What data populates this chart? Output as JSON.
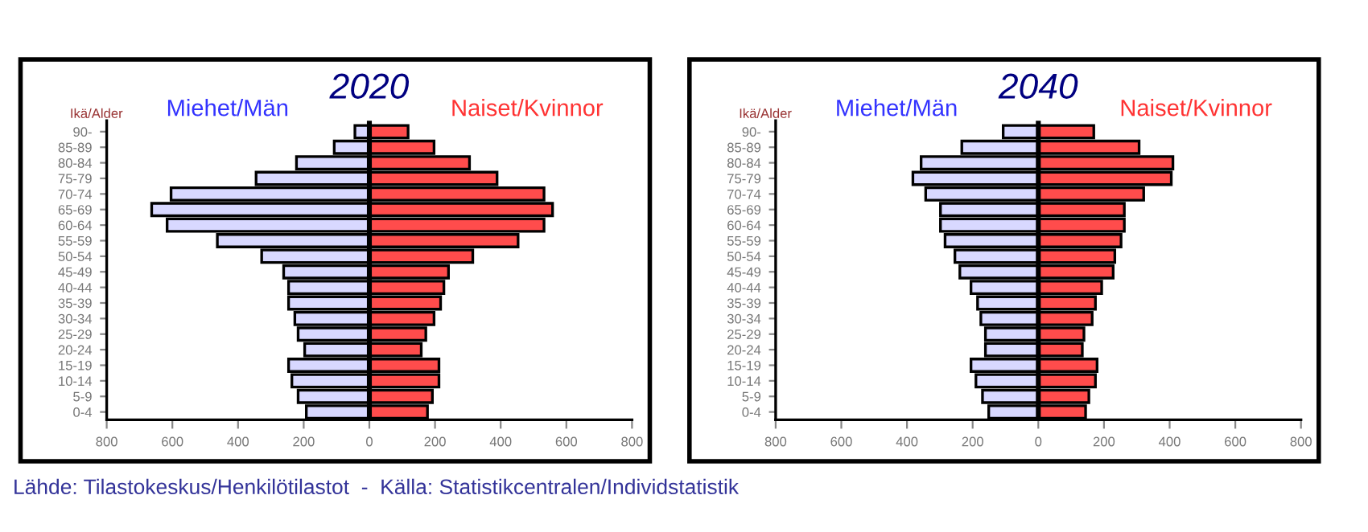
{
  "chart_data": [
    {
      "type": "bar",
      "orientation": "horizontal",
      "stacked": true,
      "title": "2020",
      "ylabel": "Ikä/Alder",
      "categories": [
        "90-",
        "85-89",
        "80-84",
        "75-79",
        "70-74",
        "65-69",
        "60-64",
        "55-59",
        "50-54",
        "45-49",
        "40-44",
        "35-39",
        "30-34",
        "25-29",
        "20-24",
        "15-19",
        "10-14",
        "5-9",
        "0-4"
      ],
      "series": [
        {
          "name": "Miehet/Män",
          "color": "#d8d8ff",
          "values": [
            -44,
            -107,
            -222,
            -345,
            -604,
            -663,
            -616,
            -463,
            -328,
            -261,
            -246,
            -246,
            -227,
            -217,
            -197,
            -246,
            -236,
            -217,
            -192
          ]
        },
        {
          "name": "Naiset/Kvinnor",
          "color": "#ff4c4c",
          "values": [
            118,
            197,
            305,
            389,
            532,
            558,
            532,
            453,
            315,
            241,
            227,
            217,
            197,
            172,
            158,
            212,
            212,
            192,
            177
          ]
        }
      ],
      "xlim": [
        -800,
        800
      ],
      "xticks": [
        {
          "value": -800,
          "label": "800"
        },
        {
          "value": -600,
          "label": "600"
        },
        {
          "value": -400,
          "label": "400"
        },
        {
          "value": -200,
          "label": "200"
        },
        0,
        200,
        400,
        600,
        800
      ],
      "ref_lines": [
        {
          "axis": "x",
          "value": 0,
          "color": "#000000"
        }
      ],
      "legend": "top",
      "grid": false
    },
    {
      "type": "bar",
      "orientation": "horizontal",
      "stacked": true,
      "title": "2040",
      "ylabel": "Ikä/Alder",
      "categories": [
        "90-",
        "85-89",
        "80-84",
        "75-79",
        "70-74",
        "65-69",
        "60-64",
        "55-59",
        "50-54",
        "45-49",
        "40-44",
        "35-39",
        "30-34",
        "25-29",
        "20-24",
        "15-19",
        "10-14",
        "5-9",
        "0-4"
      ],
      "series": [
        {
          "name": "Miehet/Män",
          "color": "#d8d8ff",
          "values": [
            -107,
            -233,
            -357,
            -382,
            -343,
            -298,
            -298,
            -284,
            -254,
            -239,
            -205,
            -185,
            -175,
            -161,
            -161,
            -205,
            -190,
            -170,
            -151
          ]
        },
        {
          "name": "Naiset/Kvinnor",
          "color": "#ff4c4c",
          "values": [
            169,
            307,
            410,
            405,
            321,
            262,
            262,
            252,
            233,
            228,
            193,
            174,
            164,
            139,
            134,
            179,
            174,
            154,
            144
          ]
        }
      ],
      "xlim": [
        -800,
        800
      ],
      "xticks": [
        {
          "value": -800,
          "label": "800"
        },
        {
          "value": -600,
          "label": "600"
        },
        {
          "value": -400,
          "label": "400"
        },
        {
          "value": -200,
          "label": "200"
        },
        0,
        200,
        400,
        600,
        800
      ],
      "ref_lines": [
        {
          "axis": "x",
          "value": 0,
          "color": "#000000"
        }
      ],
      "legend": "top",
      "grid": false,
      "annotations": [
        "Lähde: Tilastokeskus/Henkilötilastot  -  Källa: Statistikcentralen/Individstatistik"
      ]
    }
  ]
}
